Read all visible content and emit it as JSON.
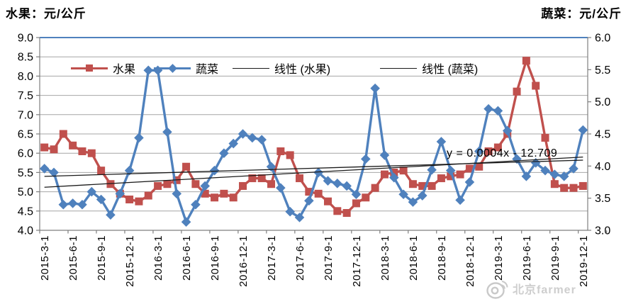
{
  "titles": {
    "left": "水果：元/公斤",
    "right": "蔬菜：元/公斤"
  },
  "legend": {
    "fruit": "水果",
    "veg": "蔬菜",
    "trend_fruit": "线性 (水果)",
    "trend_veg": "线性 (蔬菜)"
  },
  "annotation": {
    "text": "y = 0.0004x - 12.709"
  },
  "watermark": {
    "text": "北京farmer"
  },
  "colors": {
    "fruit": "#C0504D",
    "veg": "#4F81BD",
    "trend": "#1a1a1a",
    "grid": "#A6A6A6",
    "axis": "#7f7f7f",
    "top_border": "#4F81BD",
    "watermark": "#c6c6c6"
  },
  "chart_data": {
    "type": "line",
    "x": [
      "2015-3-1",
      "2015-4-1",
      "2015-5-1",
      "2015-6-1",
      "2015-7-1",
      "2015-8-1",
      "2015-9-1",
      "2015-10-1",
      "2015-11-1",
      "2015-12-1",
      "2016-1-1",
      "2016-2-1",
      "2016-3-1",
      "2016-4-1",
      "2016-5-1",
      "2016-6-1",
      "2016-7-1",
      "2016-8-1",
      "2016-9-1",
      "2016-10-1",
      "2016-11-1",
      "2016-12-1",
      "2017-1-1",
      "2017-2-1",
      "2017-3-1",
      "2017-4-1",
      "2017-5-1",
      "2017-6-1",
      "2017-7-1",
      "2017-8-1",
      "2017-9-1",
      "2017-10-1",
      "2017-11-1",
      "2017-12-1",
      "2018-1-1",
      "2018-2-1",
      "2018-3-1",
      "2018-4-1",
      "2018-5-1",
      "2018-6-1",
      "2018-7-1",
      "2018-8-1",
      "2018-9-1",
      "2018-10-1",
      "2018-11-1",
      "2018-12-1",
      "2019-1-1",
      "2019-2-1",
      "2019-3-1",
      "2019-4-1",
      "2019-5-1",
      "2019-6-1",
      "2019-7-1",
      "2019-8-1",
      "2019-9-1",
      "2019-10-1",
      "2019-11-1",
      "2019-12-1"
    ],
    "x_tick_labels": [
      "2015-3-1",
      "2015-6-1",
      "2015-9-1",
      "2015-12-1",
      "2016-3-1",
      "2016-6-1",
      "2016-9-1",
      "2016-12-1",
      "2017-3-1",
      "2017-6-1",
      "2017-9-1",
      "2017-12-1",
      "2018-3-1",
      "2018-6-1",
      "2018-9-1",
      "2018-12-1",
      "2019-3-1",
      "2019-6-1",
      "2019-9-1",
      "2019-12-1"
    ],
    "label_every": 3,
    "left_axis": {
      "label": "水果：元/公斤",
      "min": 4.0,
      "max": 9.0,
      "step": 0.5,
      "ticks": [
        "9.0",
        "8.5",
        "8.0",
        "7.5",
        "7.0",
        "6.5",
        "6.0",
        "5.5",
        "5.0",
        "4.5",
        "4.0"
      ]
    },
    "right_axis": {
      "label": "蔬菜：元/公斤",
      "min": 3.0,
      "max": 6.0,
      "step": 0.5,
      "ticks": [
        "6.0",
        "5.5",
        "5.0",
        "4.5",
        "4.0",
        "3.5",
        "3.0"
      ]
    },
    "series": [
      {
        "name": "水果",
        "axis": "left",
        "marker": "square",
        "color": "#C0504D",
        "values": [
          6.15,
          6.1,
          6.5,
          6.2,
          6.05,
          6.0,
          5.55,
          5.2,
          4.95,
          4.8,
          4.75,
          4.9,
          5.15,
          5.2,
          5.3,
          5.65,
          5.2,
          4.95,
          4.85,
          4.95,
          4.85,
          5.15,
          5.35,
          5.35,
          5.2,
          6.05,
          5.95,
          5.35,
          5.0,
          4.95,
          4.75,
          4.5,
          4.45,
          4.7,
          4.85,
          5.1,
          5.45,
          5.5,
          5.55,
          5.2,
          5.15,
          5.15,
          5.35,
          5.4,
          5.45,
          5.6,
          5.65,
          6.05,
          6.15,
          6.5,
          7.6,
          8.4,
          7.75,
          6.4,
          5.2,
          5.1,
          5.1,
          5.15
        ]
      },
      {
        "name": "蔬菜",
        "axis": "right",
        "marker": "diamond",
        "color": "#4F81BD",
        "values": [
          3.96,
          3.9,
          3.4,
          3.42,
          3.4,
          3.6,
          3.48,
          3.24,
          3.57,
          3.93,
          4.44,
          5.49,
          5.49,
          4.53,
          3.57,
          3.13,
          3.4,
          3.69,
          3.93,
          4.2,
          4.35,
          4.5,
          4.44,
          4.41,
          3.99,
          3.66,
          3.29,
          3.2,
          3.46,
          3.9,
          3.77,
          3.73,
          3.69,
          3.56,
          4.11,
          5.21,
          4.17,
          3.82,
          3.56,
          3.44,
          3.54,
          3.94,
          4.38,
          3.93,
          3.47,
          3.75,
          4.23,
          4.89,
          4.86,
          4.55,
          4.11,
          3.84,
          4.05,
          3.93,
          3.87,
          3.84,
          3.96,
          4.56
        ]
      }
    ],
    "trendlines": [
      {
        "name": "线性 (水果)",
        "axis": "left",
        "start": 5.4,
        "end": 5.82
      },
      {
        "name": "线性 (蔬菜)",
        "axis": "right",
        "start": 3.67,
        "end": 4.14
      }
    ],
    "annotation": "y = 0.0004x - 12.709",
    "legend_position": "top-center",
    "grid": true
  }
}
